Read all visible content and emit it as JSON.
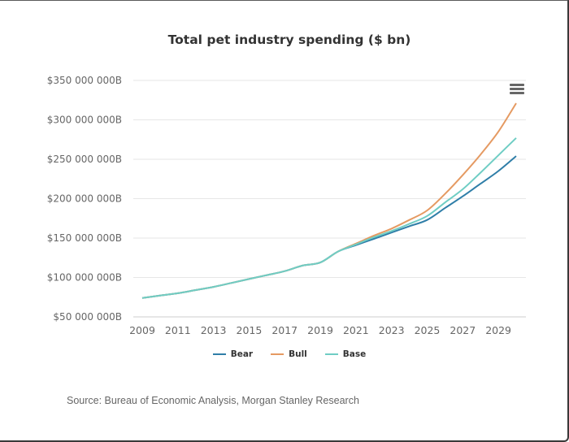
{
  "menu": {
    "icon": "hamburger-menu-icon"
  },
  "source": "Source: Bureau of Economic Analysis, Morgan Stanley Research",
  "chart_data": {
    "type": "line",
    "title": "Total pet industry spending ($ bn)",
    "xlabel": "",
    "ylabel": "",
    "x": [
      2009,
      2010,
      2011,
      2012,
      2013,
      2014,
      2015,
      2016,
      2017,
      2018,
      2019,
      2020,
      2021,
      2022,
      2023,
      2024,
      2025,
      2026,
      2027,
      2028,
      2029,
      2030
    ],
    "xticks": [
      "2009",
      "2011",
      "2013",
      "2015",
      "2017",
      "2019",
      "2021",
      "2023",
      "2025",
      "2027",
      "2029"
    ],
    "xlim": [
      2009,
      2030
    ],
    "yticks": [
      "$50 000 000B",
      "$100 000 000B",
      "$150 000 000B",
      "$200 000 000B",
      "$250 000 000B",
      "$300 000 000B",
      "$350 000 000B"
    ],
    "ytick_values": [
      50,
      100,
      150,
      200,
      250,
      300,
      350
    ],
    "ylim": [
      50,
      350
    ],
    "grid": true,
    "legend_position": "bottom-center",
    "series": [
      {
        "name": "Bear",
        "color": "#2f7ea8",
        "values": [
          74,
          77,
          80,
          84,
          88,
          93,
          98,
          103,
          108,
          115,
          119,
          133,
          141,
          149,
          157,
          165,
          173,
          188,
          203,
          219,
          235,
          254
        ]
      },
      {
        "name": "Bull",
        "color": "#e59a62",
        "values": [
          74,
          77,
          80,
          84,
          88,
          93,
          98,
          103,
          108,
          115,
          119,
          133,
          143,
          153,
          162,
          173,
          185,
          206,
          230,
          256,
          285,
          321
        ]
      },
      {
        "name": "Base",
        "color": "#6fcdc4",
        "values": [
          74,
          77,
          80,
          84,
          88,
          93,
          98,
          103,
          108,
          115,
          119,
          133,
          142,
          151,
          159,
          168,
          178,
          195,
          212,
          233,
          255,
          277
        ]
      }
    ]
  }
}
